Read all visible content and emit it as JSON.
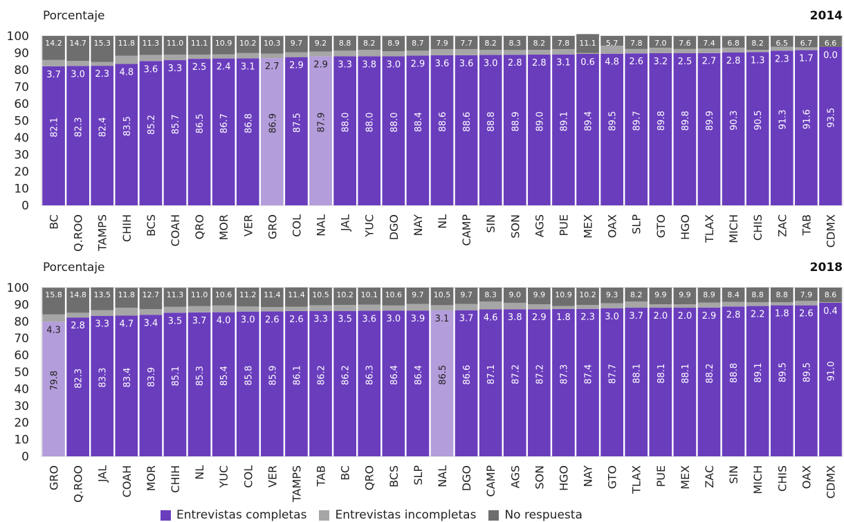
{
  "colors": {
    "completas": "#6a3dbd",
    "completas_highlight": "#b39ddb",
    "incompletas": "#a6a6a6",
    "no_respuesta": "#6e6e6e"
  },
  "legend": [
    "Entrevistas completas",
    "Entrevistas incompletas",
    "No respuesta"
  ],
  "chart_data": [
    {
      "type": "bar",
      "stacked": true,
      "year_label": "2014",
      "ylabel": "Porcentaje",
      "ylim": [
        0,
        100
      ],
      "yticks": [
        "0",
        "10",
        "20",
        "30",
        "40",
        "50",
        "60",
        "70",
        "80",
        "90",
        "100"
      ],
      "highlight": [
        "GRO",
        "NAL"
      ],
      "categories": [
        "BC",
        "Q.ROO",
        "TAMPS",
        "CHIH",
        "BCS",
        "COAH",
        "QRO",
        "MOR",
        "VER",
        "GRO",
        "COL",
        "NAL",
        "JAL",
        "YUC",
        "DGO",
        "NAY",
        "NL",
        "CAMP",
        "SIN",
        "SON",
        "AGS",
        "PUE",
        "MEX",
        "OAX",
        "SLP",
        "GTO",
        "HGO",
        "TLAX",
        "MICH",
        "CHIS",
        "ZAC",
        "TAB",
        "CDMX"
      ],
      "series": [
        {
          "name": "Entrevistas completas",
          "values": [
            82.1,
            82.3,
            82.4,
            83.5,
            85.2,
            85.7,
            86.5,
            86.7,
            86.8,
            86.9,
            87.5,
            87.9,
            88.0,
            88.0,
            88.0,
            88.4,
            88.6,
            88.6,
            88.8,
            88.9,
            89.0,
            89.1,
            89.4,
            89.5,
            89.7,
            89.8,
            89.8,
            89.9,
            90.3,
            90.5,
            91.3,
            91.6,
            93.5
          ],
          "labels": [
            "82.1",
            "82.3",
            "82.4",
            "83.5",
            "85.2",
            "85.7",
            "86.5",
            "86.7",
            "86.8",
            "86.9",
            "87.5",
            "87.9",
            "88.0",
            "88.0",
            "88.0",
            "88.4",
            "88.6",
            "88.6",
            "88.8",
            "88.9",
            "89.0",
            "89.1",
            "89.4",
            "89.5",
            "89.7",
            "89.8",
            "89.8",
            "89.9",
            "90.3",
            "90.5",
            "91.3",
            "91.6",
            "93.5"
          ]
        },
        {
          "name": "Entrevistas incompletas",
          "values": [
            3.7,
            3.0,
            2.3,
            4.8,
            3.6,
            3.3,
            2.5,
            2.4,
            3.1,
            2.7,
            2.9,
            2.9,
            3.3,
            3.8,
            3.0,
            2.9,
            3.6,
            3.6,
            3.0,
            2.8,
            2.8,
            3.1,
            0.6,
            4.8,
            2.6,
            3.2,
            2.5,
            2.7,
            2.8,
            1.3,
            2.3,
            1.7,
            0.0
          ],
          "labels": [
            "3.7",
            "3.0",
            "2.3",
            "4.8",
            "3.6",
            "3.3",
            "2.5",
            "2.4",
            "3.1",
            "2.7",
            "2.9",
            "2.9",
            "3.3",
            "3.8",
            "3.0",
            "2.9",
            "3.6",
            "3.6",
            "3.0",
            "2.8",
            "2.8",
            "3.1",
            "0.6",
            "4.8",
            "2.6",
            "3.2",
            "2.5",
            "2.7",
            "2.8",
            "1.3",
            "2.3",
            "1.7",
            "0.0"
          ]
        },
        {
          "name": "No respuesta",
          "values": [
            14.2,
            14.7,
            15.3,
            11.8,
            11.3,
            11.0,
            11.1,
            10.9,
            10.2,
            10.3,
            9.7,
            9.2,
            8.8,
            8.2,
            8.9,
            8.7,
            7.9,
            7.7,
            8.2,
            8.3,
            8.2,
            7.8,
            11.1,
            5.7,
            7.8,
            7.0,
            7.6,
            7.4,
            6.8,
            8.2,
            6.5,
            6.7,
            6.6
          ],
          "labels": [
            "14.2",
            "14.7",
            "15.3",
            "11.8",
            "11.3",
            "11.0",
            "11.1",
            "10.9",
            "10.2",
            "10.3",
            "9.7",
            "9.2",
            "8.8",
            "8.2",
            "8.9",
            "8.7",
            "7.9",
            "7.7",
            "8.2",
            "8.3",
            "8.2",
            "7.8",
            "11.1",
            "5.7",
            "7.8",
            "7.0",
            "7.6",
            "7.4",
            "6.8",
            "8.2",
            "6.5",
            "6.7",
            "6.6"
          ]
        }
      ]
    },
    {
      "type": "bar",
      "stacked": true,
      "year_label": "2018",
      "ylabel": "Porcentaje",
      "ylim": [
        0,
        100
      ],
      "yticks": [
        "0",
        "10",
        "20",
        "30",
        "40",
        "50",
        "60",
        "70",
        "80",
        "90",
        "100"
      ],
      "highlight": [
        "GRO",
        "NAL"
      ],
      "categories": [
        "GRO",
        "Q.ROO",
        "JAL",
        "COAH",
        "MOR",
        "CHIH",
        "NL",
        "YUC",
        "COL",
        "VER",
        "TAMPS",
        "TAB",
        "BC",
        "QRO",
        "BCS",
        "SLP",
        "NAL",
        "DGO",
        "CAMP",
        "AGS",
        "SON",
        "HGO",
        "NAY",
        "GTO",
        "TLAX",
        "PUE",
        "MEX",
        "ZAC",
        "SIN",
        "MICH",
        "CHIS",
        "OAX",
        "CDMX"
      ],
      "series": [
        {
          "name": "Entrevistas completas",
          "values": [
            79.8,
            82.3,
            83.3,
            83.4,
            83.9,
            85.1,
            85.3,
            85.4,
            85.8,
            85.9,
            86.1,
            86.2,
            86.2,
            86.3,
            86.4,
            86.4,
            86.5,
            86.6,
            87.1,
            87.2,
            87.2,
            87.3,
            87.4,
            87.7,
            88.1,
            88.1,
            88.1,
            88.2,
            88.8,
            89.1,
            89.5,
            89.5,
            91.0
          ],
          "labels": [
            "79.8",
            "82.3",
            "83.3",
            "83.4",
            "83.9",
            "85.1",
            "85.3",
            "85.4",
            "85.8",
            "85.9",
            "86.1",
            "86.2",
            "86.2",
            "86.3",
            "86.4",
            "86.4",
            "86.5",
            "86.6",
            "87.1",
            "87.2",
            "87.2",
            "87.3",
            "87.4",
            "87.7",
            "88.1",
            "88.1",
            "88.1",
            "88.2",
            "88.8",
            "89.1",
            "89.5",
            "89.5",
            "91.0"
          ]
        },
        {
          "name": "Entrevistas incompletas",
          "values": [
            4.3,
            2.8,
            3.3,
            4.7,
            3.4,
            3.5,
            3.7,
            4.0,
            3.0,
            2.6,
            2.6,
            3.3,
            3.5,
            3.6,
            3.0,
            3.9,
            3.1,
            3.7,
            4.6,
            3.8,
            2.9,
            1.8,
            2.3,
            3.0,
            3.7,
            2.0,
            2.0,
            2.9,
            2.8,
            2.2,
            1.8,
            2.6,
            0.4
          ],
          "labels": [
            "4.3",
            "2.8",
            "3.3",
            "4.7",
            "3.4",
            "3.5",
            "3.7",
            "4.0",
            "3.0",
            "2.6",
            "2.6",
            "3.3",
            "3.5",
            "3.6",
            "3.0",
            "3.9",
            "3.1",
            "3.7",
            "4.6",
            "3.8",
            "2.9",
            "1.8",
            "2.3",
            "3.0",
            "3.7",
            "2.0",
            "2.0",
            "2.9",
            "2.8",
            "2.2",
            "1.8",
            "2.6",
            "0.4"
          ]
        },
        {
          "name": "No respuesta",
          "values": [
            15.8,
            14.8,
            13.5,
            11.8,
            12.7,
            11.3,
            11.0,
            10.6,
            11.2,
            11.4,
            11.4,
            10.5,
            10.2,
            10.1,
            10.6,
            9.7,
            10.5,
            9.7,
            8.3,
            9.0,
            9.9,
            10.9,
            10.2,
            9.3,
            8.2,
            9.9,
            9.9,
            8.9,
            8.4,
            8.8,
            8.8,
            7.9,
            8.6
          ],
          "labels": [
            "15.8",
            "14.8",
            "13.5",
            "11.8",
            "12.7",
            "11.3",
            "11.0",
            "10.6",
            "11.2",
            "11.4",
            "11.4",
            "10.5",
            "10.2",
            "10.1",
            "10.6",
            "9.7",
            "10.5",
            "9.7",
            "8.3",
            "9.0",
            "9.9",
            "10.9",
            "10.2",
            "9.3",
            "8.2",
            "9.9",
            "9.9",
            "8.9",
            "8.4",
            "8.8",
            "8.8",
            "7.9",
            "8.6"
          ]
        }
      ]
    }
  ]
}
